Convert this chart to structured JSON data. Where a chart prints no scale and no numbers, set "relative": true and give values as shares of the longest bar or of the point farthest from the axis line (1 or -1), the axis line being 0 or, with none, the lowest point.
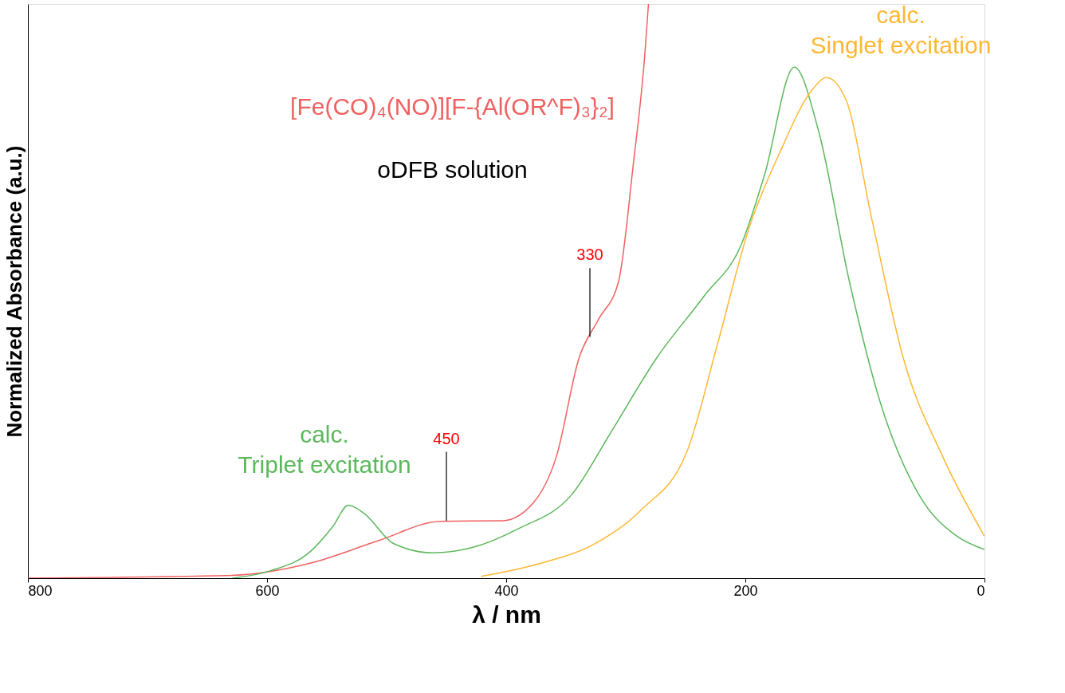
{
  "chart_data": {
    "type": "line",
    "relative": true,
    "xlabel": "λ / nm",
    "ylabel": "Normalized Absorbance (a.u.)",
    "xlim": [
      800,
      0
    ],
    "xticks": [
      800,
      600,
      400,
      200,
      0
    ],
    "grid": false,
    "line_style": "solid",
    "marker": "none",
    "series": [
      {
        "name": "[Fe(CO)₄(NO)][F-{Al(OR^F)₃}₂]",
        "color": "#f06060",
        "x": [
          800,
          629,
          564,
          506,
          455,
          403,
          377,
          358,
          339,
          323,
          306,
          294,
          284,
          281
        ],
        "values": [
          0,
          0.005,
          0.026,
          0.066,
          0.099,
          0.1,
          0.132,
          0.212,
          0.384,
          0.45,
          0.517,
          0.715,
          0.914,
          1.0
        ]
      },
      {
        "name": "calc.\nTriplet excitation",
        "color": "#5cb85c",
        "x": [
          629,
          597,
          564,
          545,
          532,
          519,
          494,
          461,
          429,
          390,
          345,
          313,
          274,
          235,
          203,
          184,
          159,
          139,
          113,
          87,
          55,
          23,
          0
        ],
        "values": [
          0,
          0.013,
          0.046,
          0.09,
          0.127,
          0.113,
          0.06,
          0.044,
          0.053,
          0.086,
          0.146,
          0.252,
          0.384,
          0.49,
          0.583,
          0.702,
          0.89,
          0.781,
          0.517,
          0.305,
          0.146,
          0.073,
          0.05
        ]
      },
      {
        "name": "calc.\nSinglet excitation",
        "color": "#ffb733",
        "x": [
          421,
          371,
          326,
          287,
          248,
          223,
          197,
          171,
          145,
          132,
          116,
          94,
          68,
          35,
          0
        ],
        "values": [
          0.003,
          0.026,
          0.06,
          0.119,
          0.225,
          0.41,
          0.609,
          0.742,
          0.848,
          0.872,
          0.834,
          0.623,
          0.384,
          0.212,
          0.073
        ]
      }
    ],
    "annotations": [
      {
        "text": "450",
        "x": 450,
        "y": 0.1
      },
      {
        "text": "330",
        "x": 330,
        "y": 0.42
      },
      "oDFB solution"
    ]
  }
}
